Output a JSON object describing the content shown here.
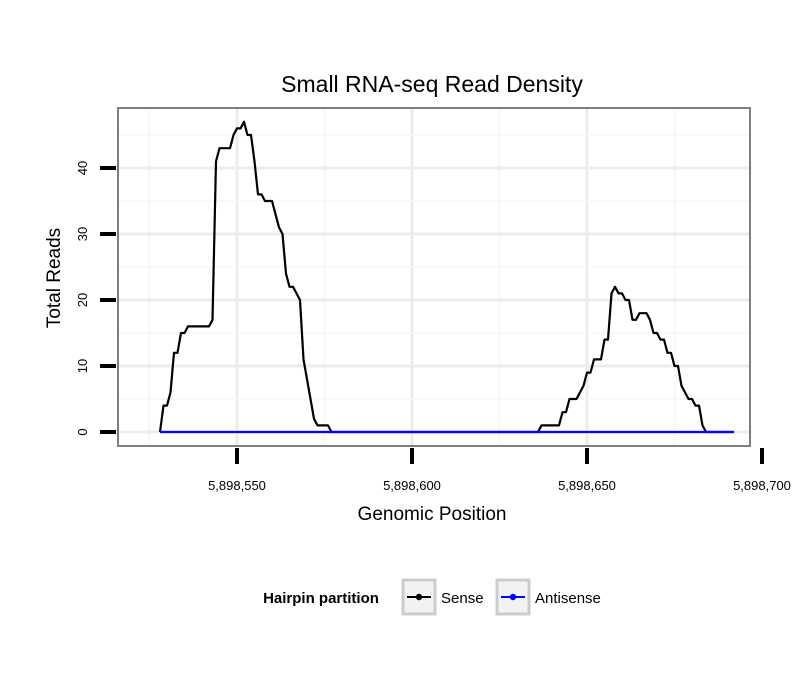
{
  "chart_data": {
    "type": "line",
    "title": "Small RNA-seq Read Density",
    "xlabel": "Genomic Position",
    "ylabel": "Total Reads",
    "xlim": [
      5898520,
      5898700
    ],
    "ylim": [
      -2,
      49
    ],
    "x_ticks": [
      5898550,
      5898600,
      5898650,
      5898700
    ],
    "x_tick_labels": [
      "5,898,550",
      "5,898,600",
      "5,898,650",
      "5,898,700"
    ],
    "y_ticks": [
      0,
      10,
      20,
      30,
      40
    ],
    "y_tick_labels": [
      "0",
      "10",
      "20",
      "30",
      "40"
    ],
    "grid": true,
    "legend": {
      "title": "Hairpin partition",
      "position": "bottom",
      "entries": [
        "Sense",
        "Antisense"
      ]
    },
    "series": [
      {
        "name": "Sense",
        "color": "#000000",
        "x": [
          5898528,
          5898529,
          5898530,
          5898531,
          5898532,
          5898533,
          5898534,
          5898535,
          5898536,
          5898537,
          5898538,
          5898539,
          5898540,
          5898541,
          5898542,
          5898543,
          5898544,
          5898545,
          5898546,
          5898547,
          5898548,
          5898549,
          5898550,
          5898551,
          5898552,
          5898553,
          5898554,
          5898555,
          5898556,
          5898557,
          5898558,
          5898559,
          5898560,
          5898561,
          5898562,
          5898563,
          5898564,
          5898565,
          5898566,
          5898567,
          5898568,
          5898569,
          5898570,
          5898571,
          5898572,
          5898573,
          5898574,
          5898575,
          5898576,
          5898577,
          5898578,
          5898579,
          5898580,
          5898590,
          5898600,
          5898610,
          5898620,
          5898630,
          5898636,
          5898637,
          5898638,
          5898639,
          5898640,
          5898641,
          5898642,
          5898643,
          5898644,
          5898645,
          5898646,
          5898647,
          5898648,
          5898649,
          5898650,
          5898651,
          5898652,
          5898653,
          5898654,
          5898655,
          5898656,
          5898657,
          5898658,
          5898659,
          5898660,
          5898661,
          5898662,
          5898663,
          5898664,
          5898665,
          5898666,
          5898667,
          5898668,
          5898669,
          5898670,
          5898671,
          5898672,
          5898673,
          5898674,
          5898675,
          5898676,
          5898677,
          5898678,
          5898679,
          5898680,
          5898681,
          5898682,
          5898683,
          5898684,
          5898685,
          5898686,
          5898688,
          5898690,
          5898692
        ],
        "y": [
          0,
          4,
          4,
          6,
          12,
          12,
          15,
          15,
          16,
          16,
          16,
          16,
          16,
          16,
          16,
          17,
          41,
          43,
          43,
          43,
          43,
          45,
          46,
          46,
          47,
          45,
          45,
          41,
          36,
          36,
          35,
          35,
          35,
          33,
          31,
          30,
          24,
          22,
          22,
          21,
          20,
          11,
          8,
          5,
          2,
          1,
          1,
          1,
          1,
          0,
          0,
          0,
          0,
          0,
          0,
          0,
          0,
          0,
          0,
          1,
          1,
          1,
          1,
          1,
          1,
          3,
          3,
          5,
          5,
          5,
          6,
          7,
          9,
          9,
          11,
          11,
          11,
          14,
          14,
          21,
          22,
          21,
          21,
          20,
          20,
          17,
          17,
          18,
          18,
          18,
          17,
          15,
          15,
          14,
          14,
          12,
          12,
          10,
          10,
          7,
          6,
          5,
          5,
          4,
          4,
          1,
          0,
          0,
          0,
          0,
          0,
          0
        ]
      },
      {
        "name": "Antisense",
        "color": "#0000ff",
        "x": [
          5898528,
          5898692
        ],
        "y": [
          0,
          0
        ]
      }
    ]
  }
}
